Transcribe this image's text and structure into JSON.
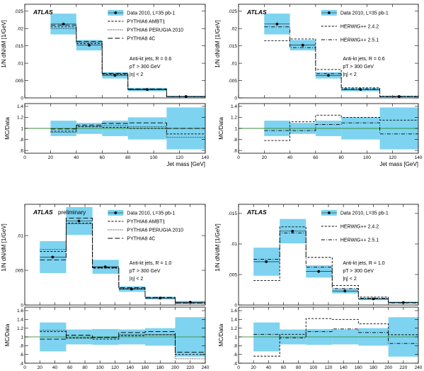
{
  "chart_data": [
    {
      "type": "line",
      "title": "",
      "atlas_label": "ATLAS",
      "preliminary_label": "",
      "xlabel": "Jet mass [GeV]",
      "ylabel_main": "1/N dN/dM [1/GeV]",
      "ylabel_ratio": "MC/Data",
      "xlim": [
        0,
        140
      ],
      "ylim_main": [
        0,
        0.027
      ],
      "ylim_ratio": [
        0.55,
        1.45
      ],
      "x_ticks": [
        0,
        20,
        40,
        60,
        80,
        100,
        120,
        140
      ],
      "y_ticks_main": [
        0,
        0.005,
        0.01,
        0.015,
        0.02,
        0.025
      ],
      "y_ticks_ratio": [
        0.6,
        0.8,
        1,
        1.2,
        1.4
      ],
      "bin_edges": [
        20,
        40,
        60,
        80,
        110,
        140
      ],
      "legend_position": "top-right",
      "annotation": [
        "Anti-kt jets, R = 0.6",
        "pT > 300 GeV",
        "|η| < 2"
      ],
      "data": {
        "name": "Data 2010, L=35 pb-1",
        "x": [
          30,
          50,
          70,
          95,
          125
        ],
        "values": [
          0.0213,
          0.0152,
          0.0065,
          0.0024,
          0.0004
        ],
        "band": [
          0.003,
          0.0015,
          0.0009,
          0.0005,
          0.0002
        ]
      },
      "series": [
        {
          "name": "PYTHIA6 AMBT1",
          "style": "dashed",
          "values": [
            0.0205,
            0.0157,
            0.0068,
            0.0024,
            0.00035
          ]
        },
        {
          "name": "PYTHIA6 PERUGIA 2010",
          "style": "dotted",
          "values": [
            0.02,
            0.016,
            0.0069,
            0.0025,
            0.00035
          ]
        },
        {
          "name": "PYTHIA8 4C",
          "style": "longdash",
          "values": [
            0.021,
            0.0163,
            0.0071,
            0.0026,
            0.00038
          ]
        }
      ],
      "ratio_band": [
        0.14,
        0.1,
        0.14,
        0.2,
        0.38
      ],
      "ratio_series": [
        {
          "name": "PYTHIA6 AMBT1",
          "style": "dashed",
          "values": [
            0.95,
            1.03,
            1.02,
            1.0,
            0.9
          ]
        },
        {
          "name": "PYTHIA6 PERUGIA 2010",
          "style": "dotted",
          "values": [
            0.93,
            1.04,
            1.05,
            1.03,
            0.84
          ]
        },
        {
          "name": "PYTHIA8 4C",
          "style": "longdash",
          "values": [
            0.99,
            1.06,
            1.09,
            1.1,
            1.0
          ]
        }
      ]
    },
    {
      "type": "line",
      "title": "",
      "atlas_label": "ATLAS",
      "preliminary_label": "",
      "xlabel": "Jet mass [GeV]",
      "ylabel_main": "1/N dN/dM [1/GeV]",
      "ylabel_ratio": "MC/Data",
      "xlim": [
        0,
        140
      ],
      "ylim_main": [
        0,
        0.027
      ],
      "ylim_ratio": [
        0.55,
        1.45
      ],
      "x_ticks": [
        0,
        20,
        40,
        60,
        80,
        100,
        120,
        140
      ],
      "y_ticks_main": [
        0,
        0.005,
        0.01,
        0.015,
        0.02,
        0.025
      ],
      "y_ticks_ratio": [
        0.6,
        0.8,
        1,
        1.2,
        1.4
      ],
      "bin_edges": [
        20,
        40,
        60,
        80,
        110,
        140
      ],
      "legend_position": "top-right",
      "annotation": [
        "Anti-kt jets, R = 0.6",
        "pT > 300 GeV",
        "|η| < 2"
      ],
      "data": {
        "name": "Data 2010, L=35 pb-1",
        "x": [
          30,
          50,
          70,
          95,
          125
        ],
        "values": [
          0.0213,
          0.0152,
          0.0065,
          0.0024,
          0.0004
        ],
        "band": [
          0.003,
          0.0015,
          0.0009,
          0.0005,
          0.0002
        ]
      },
      "series": [
        {
          "name": "HERWIG++ 2.4.2",
          "style": "dashed",
          "values": [
            0.0165,
            0.017,
            0.0082,
            0.0029,
            0.00046
          ]
        },
        {
          "name": "HERWIG++ 2.5.1",
          "style": "dashdot",
          "values": [
            0.0205,
            0.0145,
            0.007,
            0.0026,
            0.00036
          ]
        }
      ],
      "ratio_band": [
        0.14,
        0.1,
        0.14,
        0.2,
        0.38
      ],
      "ratio_series": [
        {
          "name": "HERWIG++ 2.4.2",
          "style": "dashed",
          "values": [
            0.78,
            1.12,
            1.24,
            1.2,
            1.15
          ]
        },
        {
          "name": "HERWIG++ 2.5.1",
          "style": "dashdot",
          "values": [
            0.96,
            0.96,
            1.07,
            1.1,
            0.9
          ]
        }
      ]
    },
    {
      "type": "line",
      "title": "",
      "atlas_label": "ATLAS",
      "preliminary_label": "preliminary",
      "xlabel": "Jet mass [GeV]",
      "ylabel_main": "1/N dN/dM [1/GeV]",
      "ylabel_ratio": "MC/Data",
      "xlim": [
        0,
        240
      ],
      "ylim_main": [
        0,
        0.0145
      ],
      "ylim_ratio": [
        0.4,
        1.68
      ],
      "x_ticks": [
        0,
        20,
        40,
        60,
        80,
        100,
        120,
        140,
        160,
        180,
        200,
        220,
        240
      ],
      "y_ticks_main": [
        0,
        0.005,
        0.01
      ],
      "y_ticks_ratio": [
        0.4,
        0.6,
        0.8,
        1,
        1.2,
        1.4,
        1.6
      ],
      "bin_edges": [
        20,
        55,
        90,
        125,
        160,
        200,
        240
      ],
      "legend_position": "top-right",
      "annotation": [
        "Anti-kt jets, R = 1.0",
        "pT > 300 GeV",
        "|η| < 2"
      ],
      "data": {
        "name": "Data 2010, L=35 pb-1",
        "x": [
          37,
          72,
          107,
          142,
          180,
          220
        ],
        "values": [
          0.0069,
          0.0121,
          0.0055,
          0.0023,
          0.001,
          0.0004
        ],
        "band": [
          0.0023,
          0.002,
          0.001,
          0.0004,
          0.0002,
          0.00018
        ]
      },
      "series": [
        {
          "name": "PYTHIA6 AMBT1",
          "style": "dashed",
          "values": [
            0.0077,
            0.0118,
            0.0053,
            0.0023,
            0.001,
            0.0003
          ]
        },
        {
          "name": "PYTHIA6 PERUGIA 2010",
          "style": "dotted",
          "values": [
            0.008,
            0.0117,
            0.0055,
            0.0024,
            0.001,
            0.00025
          ]
        },
        {
          "name": "PYTHIA8 4C",
          "style": "longdash",
          "values": [
            0.0065,
            0.0125,
            0.0054,
            0.0025,
            0.0011,
            0.00028
          ]
        }
      ],
      "ratio_band": [
        0.33,
        0.17,
        0.18,
        0.17,
        0.2,
        0.45
      ],
      "ratio_series": [
        {
          "name": "PYTHIA6 AMBT1",
          "style": "dashed",
          "values": [
            1.12,
            0.98,
            0.95,
            1.03,
            1.05,
            0.6
          ]
        },
        {
          "name": "PYTHIA6 PERUGIA 2010",
          "style": "dotted",
          "values": [
            1.15,
            0.97,
            0.98,
            1.05,
            1.05,
            0.5
          ]
        },
        {
          "name": "PYTHIA8 4C",
          "style": "longdash",
          "values": [
            0.95,
            1.04,
            0.99,
            1.1,
            1.12,
            0.65
          ]
        }
      ]
    },
    {
      "type": "line",
      "title": "",
      "atlas_label": "ATLAS",
      "preliminary_label": "",
      "xlabel": "Jet mass [GeV]",
      "ylabel_main": "1/N dN/dM [1/GeV]",
      "ylabel_ratio": "MC/Data",
      "xlim": [
        0,
        240
      ],
      "ylim_main": [
        0,
        0.0165
      ],
      "ylim_ratio": [
        0.4,
        1.68
      ],
      "x_ticks": [
        0,
        20,
        40,
        60,
        80,
        100,
        120,
        140,
        160,
        180,
        200,
        220,
        240
      ],
      "y_ticks_main": [
        0,
        0.005,
        0.01,
        0.015
      ],
      "y_ticks_ratio": [
        0.4,
        0.6,
        0.8,
        1,
        1.2,
        1.4,
        1.6
      ],
      "bin_edges": [
        20,
        55,
        90,
        125,
        160,
        200,
        240
      ],
      "legend_position": "top-right",
      "annotation": [
        "Anti-kt jets, R = 1.0",
        "pT > 300 GeV",
        "|η| < 2"
      ],
      "data": {
        "name": "Data 2010, L=35 pb-1",
        "x": [
          37,
          72,
          107,
          142,
          180,
          220
        ],
        "values": [
          0.0071,
          0.0121,
          0.0055,
          0.0023,
          0.001,
          0.0004
        ],
        "band": [
          0.0023,
          0.002,
          0.001,
          0.0004,
          0.0002,
          0.00018
        ]
      },
      "series": [
        {
          "name": "HERWIG++ 2.4.2",
          "style": "dashed",
          "values": [
            0.004,
            0.0128,
            0.0078,
            0.0032,
            0.0013,
            0.0004
          ]
        },
        {
          "name": "HERWIG++ 2.5.1",
          "style": "dashdot",
          "values": [
            0.0075,
            0.0118,
            0.0062,
            0.0027,
            0.0011,
            0.00035
          ]
        }
      ],
      "ratio_band": [
        0.33,
        0.17,
        0.18,
        0.17,
        0.2,
        0.45
      ],
      "ratio_series": [
        {
          "name": "HERWIG++ 2.4.2",
          "style": "dashed",
          "values": [
            0.56,
            1.06,
            1.42,
            1.4,
            1.3,
            1.05
          ]
        },
        {
          "name": "HERWIG++ 2.5.1",
          "style": "dashdot",
          "values": [
            1.06,
            0.98,
            1.12,
            1.18,
            1.1,
            0.85
          ]
        }
      ]
    }
  ],
  "colors": {
    "band": "#7dd3f0",
    "unity_line": "#3a8c3a",
    "axis": "#000000"
  }
}
